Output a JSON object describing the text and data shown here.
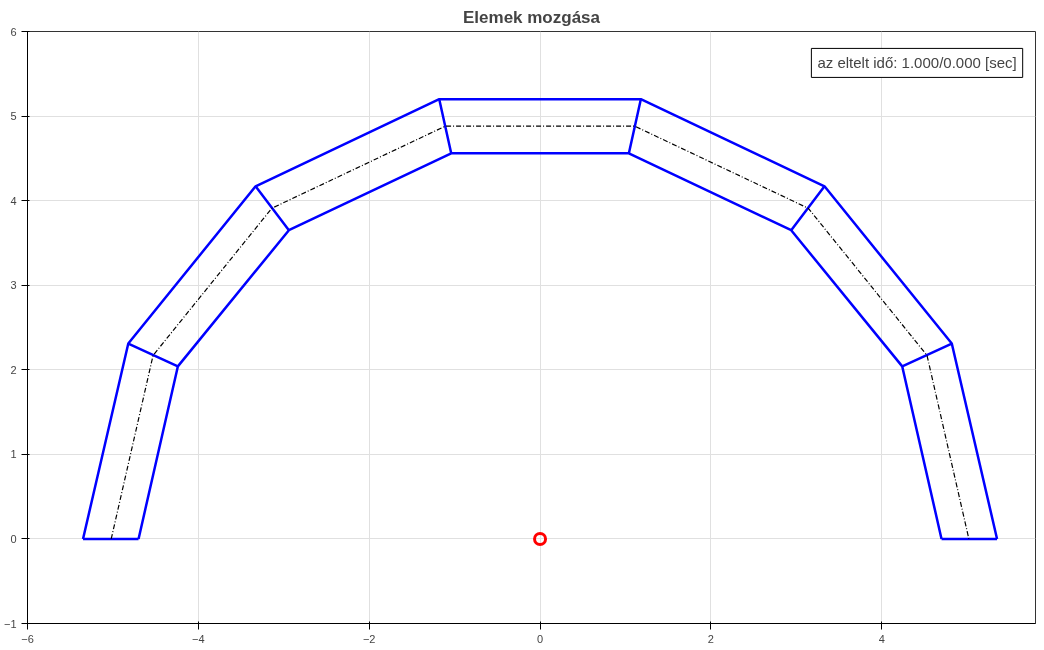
{
  "chart_data": {
    "type": "line",
    "title": "Elemek mozgása",
    "xlim": [
      -6,
      5.8
    ],
    "ylim": [
      -1,
      6
    ],
    "xticks": [
      -6,
      -4,
      -2,
      0,
      2,
      4
    ],
    "yticks": [
      -1,
      0,
      1,
      2,
      3,
      4,
      5,
      6
    ],
    "grid": true,
    "marker": "none",
    "annotations": [
      "az eltelt idő: 1.000/0.000 [sec]"
    ],
    "series": [
      {
        "color": "#0000ff",
        "line_style": "solid",
        "x": [
          -5.35,
          -4.82,
          -3.33,
          -1.18,
          1.18,
          3.33,
          4.82,
          5.35
        ],
        "values": [
          0,
          2.31,
          4.17,
          5.2,
          5.2,
          4.17,
          2.31,
          0
        ]
      },
      {
        "color": "#0000ff",
        "line_style": "solid",
        "x": [
          -4.7,
          -4.24,
          -2.94,
          -1.04,
          1.04,
          2.94,
          4.24,
          4.7
        ],
        "values": [
          0,
          2.04,
          3.65,
          4.56,
          4.56,
          3.65,
          2.04,
          0
        ]
      },
      {
        "color": "#0000ff",
        "line_style": "solid",
        "x": [
          -5.35,
          -4.7,
          null,
          -4.82,
          -4.24,
          null,
          -3.33,
          -2.94,
          null,
          -1.18,
          -1.04,
          null,
          1.18,
          1.04,
          null,
          3.33,
          2.94,
          null,
          4.82,
          4.24,
          null,
          5.35,
          4.7
        ],
        "values": [
          0,
          0,
          null,
          2.31,
          2.04,
          null,
          4.17,
          3.65,
          null,
          5.2,
          4.56,
          null,
          5.2,
          4.56,
          null,
          4.17,
          3.65,
          null,
          2.31,
          2.04,
          null,
          0,
          0
        ]
      },
      {
        "color": "#000000",
        "line_style": "dashdot",
        "x": [
          -5.02,
          -4.53,
          -3.14,
          -1.11,
          1.11,
          3.14,
          4.53,
          5.02
        ],
        "values": [
          0,
          2.17,
          3.91,
          4.88,
          4.88,
          3.91,
          2.17,
          0
        ]
      },
      {
        "type": "scatter",
        "marker": "circle",
        "color": "#ff0000",
        "x": [
          0
        ],
        "values": [
          0
        ]
      }
    ]
  }
}
